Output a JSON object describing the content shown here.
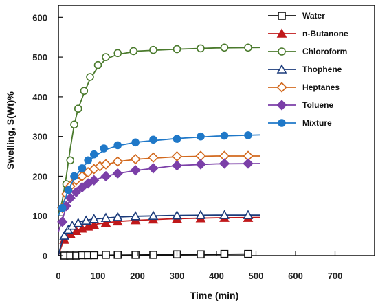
{
  "chart_data": {
    "type": "scatter",
    "xlabel": "Time (min)",
    "ylabel": "Swelling, S(Wt)%",
    "xlim": [
      0,
      800
    ],
    "ylim": [
      0,
      630
    ],
    "xticks": [
      0,
      100,
      200,
      300,
      400,
      500,
      600,
      700
    ],
    "yticks": [
      0,
      100,
      200,
      300,
      400,
      500,
      600
    ],
    "grid": false,
    "legend_position": "top-right",
    "series": [
      {
        "name": "Water",
        "color": "#111111",
        "marker": "square-open",
        "x": [
          15,
          30,
          45,
          60,
          75,
          90,
          120,
          150,
          195,
          240,
          300,
          360,
          420,
          480
        ],
        "y": [
          0,
          0,
          0,
          1,
          1,
          1,
          2,
          2,
          2,
          2,
          3,
          3,
          4,
          4
        ],
        "fit": [
          [
            0,
            0
          ],
          [
            480,
            4
          ]
        ]
      },
      {
        "name": "n-Butanone",
        "color": "#c0181a",
        "marker": "triangle-filled",
        "x": [
          15,
          30,
          45,
          60,
          75,
          90,
          120,
          150,
          195,
          240,
          300,
          360,
          420,
          480
        ],
        "y": [
          40,
          55,
          62,
          68,
          73,
          77,
          82,
          86,
          89,
          91,
          93,
          94,
          95,
          95
        ],
        "fit": [
          [
            0,
            0
          ],
          [
            10,
            30
          ],
          [
            20,
            45
          ],
          [
            40,
            60
          ],
          [
            70,
            72
          ],
          [
            100,
            80
          ],
          [
            150,
            86
          ],
          [
            200,
            89
          ],
          [
            300,
            93
          ],
          [
            400,
            95
          ],
          [
            510,
            96
          ]
        ]
      },
      {
        "name": "Chloroform",
        "color": "#4a7a2c",
        "marker": "circle-open",
        "x": [
          20,
          30,
          40,
          50,
          65,
          80,
          100,
          120,
          150,
          190,
          240,
          300,
          360,
          420,
          480
        ],
        "y": [
          180,
          240,
          330,
          370,
          415,
          450,
          480,
          500,
          510,
          515,
          518,
          520,
          522,
          524,
          524
        ],
        "fit": [
          [
            0,
            100
          ],
          [
            10,
            140
          ],
          [
            20,
            200
          ],
          [
            30,
            270
          ],
          [
            40,
            330
          ],
          [
            50,
            370
          ],
          [
            65,
            410
          ],
          [
            80,
            445
          ],
          [
            100,
            475
          ],
          [
            120,
            495
          ],
          [
            150,
            507
          ],
          [
            200,
            515
          ],
          [
            300,
            520
          ],
          [
            400,
            523
          ],
          [
            510,
            524
          ]
        ]
      },
      {
        "name": "Thophene",
        "color": "#1a3a7a",
        "marker": "triangle-open",
        "x": [
          15,
          25,
          35,
          50,
          70,
          90,
          120,
          150,
          195,
          240,
          300,
          360,
          420,
          480
        ],
        "y": [
          50,
          65,
          75,
          82,
          88,
          92,
          95,
          97,
          99,
          100,
          101,
          102,
          102,
          102
        ],
        "fit": [
          [
            0,
            0
          ],
          [
            10,
            40
          ],
          [
            20,
            60
          ],
          [
            35,
            75
          ],
          [
            60,
            87
          ],
          [
            90,
            92
          ],
          [
            150,
            97
          ],
          [
            200,
            99
          ],
          [
            300,
            101
          ],
          [
            400,
            102
          ],
          [
            510,
            102
          ]
        ]
      },
      {
        "name": "Heptanes",
        "color": "#d2691e",
        "marker": "diamond-open",
        "x": [
          10,
          20,
          30,
          45,
          60,
          75,
          90,
          105,
          120,
          150,
          195,
          240,
          300,
          360,
          420,
          480
        ],
        "y": [
          120,
          155,
          175,
          190,
          200,
          210,
          218,
          225,
          230,
          237,
          243,
          247,
          250,
          251,
          251,
          251
        ],
        "fit": [
          [
            0,
            100
          ],
          [
            10,
            125
          ],
          [
            20,
            155
          ],
          [
            40,
            185
          ],
          [
            60,
            202
          ],
          [
            90,
            218
          ],
          [
            120,
            229
          ],
          [
            150,
            237
          ],
          [
            200,
            243
          ],
          [
            300,
            249
          ],
          [
            400,
            251
          ],
          [
            510,
            251
          ]
        ]
      },
      {
        "name": "Toluene",
        "color": "#7b3fa8",
        "marker": "diamond-filled",
        "x": [
          10,
          20,
          30,
          45,
          60,
          75,
          90,
          120,
          150,
          195,
          240,
          300,
          360,
          420,
          480
        ],
        "y": [
          85,
          125,
          145,
          160,
          172,
          182,
          190,
          200,
          207,
          215,
          220,
          227,
          230,
          232,
          232
        ],
        "fit": [
          [
            0,
            60
          ],
          [
            10,
            90
          ],
          [
            20,
            125
          ],
          [
            40,
            155
          ],
          [
            60,
            172
          ],
          [
            90,
            190
          ],
          [
            120,
            200
          ],
          [
            150,
            207
          ],
          [
            200,
            215
          ],
          [
            300,
            227
          ],
          [
            400,
            231
          ],
          [
            510,
            232
          ]
        ]
      },
      {
        "name": "Mixture",
        "color": "#1f78c8",
        "marker": "circle-filled",
        "x": [
          10,
          25,
          40,
          60,
          75,
          90,
          115,
          150,
          195,
          240,
          300,
          360,
          420,
          480
        ],
        "y": [
          120,
          165,
          200,
          220,
          240,
          255,
          270,
          278,
          285,
          292,
          294,
          300,
          302,
          303
        ],
        "fit": [
          [
            0,
            100
          ],
          [
            10,
            125
          ],
          [
            25,
            165
          ],
          [
            40,
            195
          ],
          [
            60,
            222
          ],
          [
            90,
            250
          ],
          [
            120,
            267
          ],
          [
            150,
            277
          ],
          [
            200,
            286
          ],
          [
            300,
            295
          ],
          [
            400,
            301
          ],
          [
            510,
            304
          ]
        ]
      }
    ]
  }
}
